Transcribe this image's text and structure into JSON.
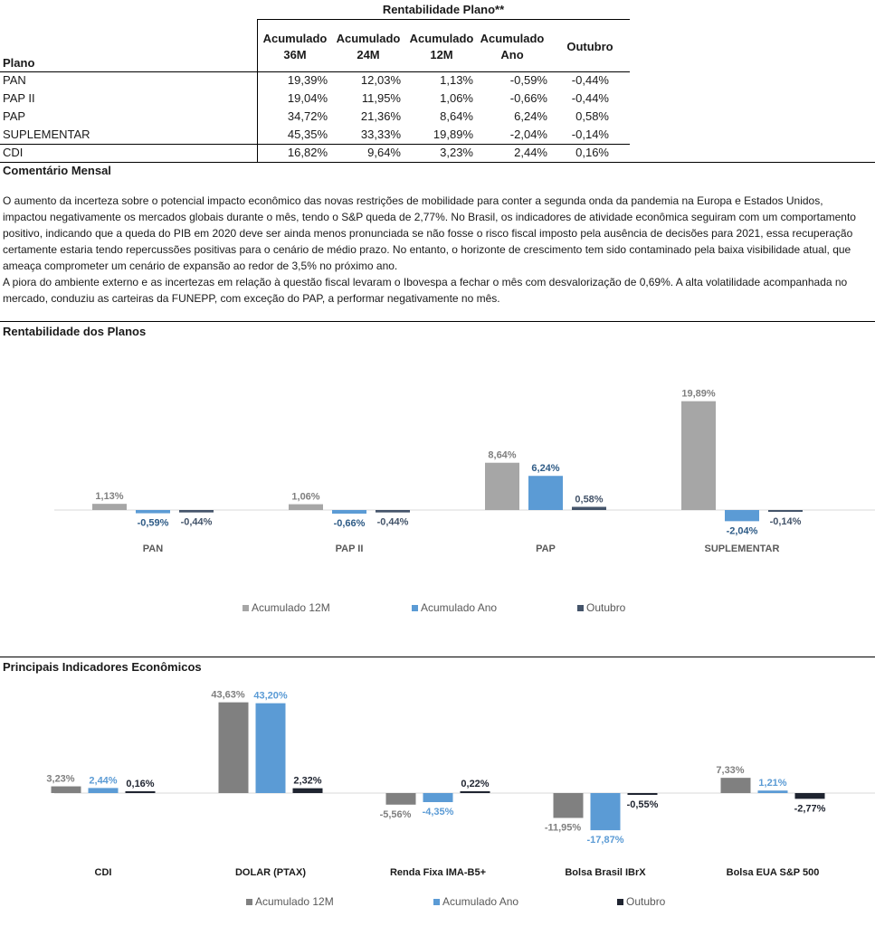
{
  "table": {
    "super_header": "Rentabilidade Plano**",
    "plan_header": "Plano",
    "columns": [
      {
        "line1": "Acumulado",
        "line2": "36M"
      },
      {
        "line1": "Acumulado",
        "line2": "24M"
      },
      {
        "line1": "Acumulado",
        "line2": "12M"
      },
      {
        "line1": "Acumulado",
        "line2": "Ano"
      },
      {
        "line1": "Outubro",
        "line2": ""
      }
    ],
    "rows": [
      {
        "name": "PAN",
        "values": [
          "19,39%",
          "12,03%",
          "1,13%",
          "-0,59%",
          "-0,44%"
        ]
      },
      {
        "name": "PAP II",
        "values": [
          "19,04%",
          "11,95%",
          "1,06%",
          "-0,66%",
          "-0,44%"
        ]
      },
      {
        "name": "PAP",
        "values": [
          "34,72%",
          "21,36%",
          "8,64%",
          "6,24%",
          "0,58%"
        ]
      },
      {
        "name": "SUPLEMENTAR",
        "values": [
          "45,35%",
          "33,33%",
          "19,89%",
          "-2,04%",
          "-0,14%"
        ]
      },
      {
        "name": "CDI",
        "values": [
          "16,82%",
          "9,64%",
          "3,23%",
          "2,44%",
          "0,16%"
        ]
      }
    ]
  },
  "comment": {
    "title": "Comentário Mensal",
    "paragraph1": "O aumento da incerteza sobre o potencial impacto econômico das novas restrições de mobilidade para conter a segunda onda da pandemia na Europa e Estados Unidos, impactou negativamente os mercados globais durante o mês, tendo o S&P queda de 2,77%. No Brasil, os indicadores de atividade econômica seguiram com um comportamento positivo, indicando que a queda do PIB em 2020 deve ser ainda menos pronunciada se não fosse o risco fiscal imposto pela ausência de decisões para 2021, essa recuperação certamente estaria tendo repercussões positivas para o cenário de médio prazo. No entanto, o horizonte de crescimento tem sido contaminado pela baixa visibilidade atual, que ameaça comprometer um cenário de expansão ao redor de 3,5% no próximo ano.",
    "paragraph2": "A piora do ambiente externo e as incertezas em relação à questão fiscal levaram o Ibovespa a fechar o mês com desvalorização de 0,69%. A alta volatilidade acompanhada no mercado, conduziu as carteiras da FUNEPP, com exceção do PAP,  a performar negativamente no mês."
  },
  "section1_title": "Rentabilidade dos Planos",
  "section2_title": "Principais Indicadores Econômicos",
  "chart_data": [
    {
      "type": "bar",
      "title": "Rentabilidade dos Planos",
      "categories": [
        "PAN",
        "PAP II",
        "PAP",
        "SUPLEMENTAR"
      ],
      "series": [
        {
          "name": "Acumulado 12M",
          "values": [
            1.13,
            1.06,
            8.64,
            19.89
          ],
          "labels": [
            "1,13%",
            "1,06%",
            "8,64%",
            "19,89%"
          ],
          "color": "#a6a6a6",
          "label_color": "#7f7f7f"
        },
        {
          "name": "Acumulado Ano",
          "values": [
            -0.59,
            -0.66,
            6.24,
            -2.04
          ],
          "labels": [
            "-0,59%",
            "-0,66%",
            "6,24%",
            "-2,04%"
          ],
          "color": "#5b9bd5",
          "label_color": "#2e5b86"
        },
        {
          "name": "Outubro",
          "values": [
            -0.44,
            -0.44,
            0.58,
            -0.14
          ],
          "labels": [
            "-0,44%",
            "-0,44%",
            "0,58%",
            "-0,14%"
          ],
          "color": "#44546a",
          "label_color": "#44546a"
        }
      ],
      "legend": "bottom"
    },
    {
      "type": "bar",
      "title": "Principais Indicadores Econômicos",
      "categories": [
        "CDI",
        "DOLAR (PTAX)",
        "Renda Fixa IMA-B5+",
        "Bolsa Brasil IBrX",
        "Bolsa EUA S&P 500"
      ],
      "series": [
        {
          "name": "Acumulado 12M",
          "values": [
            3.23,
            43.63,
            -5.56,
            -11.95,
            7.33
          ],
          "labels": [
            "3,23%",
            "43,63%",
            "-5,56%",
            "-11,95%",
            "7,33%"
          ],
          "color": "#808080",
          "label_color": "#7f7f7f"
        },
        {
          "name": "Acumulado Ano",
          "values": [
            2.44,
            43.2,
            -4.35,
            -17.87,
            1.21
          ],
          "labels": [
            "2,44%",
            "43,20%",
            "-4,35%",
            "-17,87%",
            "1,21%"
          ],
          "color": "#5b9bd5",
          "label_color": "#5b9bd5"
        },
        {
          "name": "Outubro",
          "values": [
            0.16,
            2.32,
            0.22,
            -0.55,
            -2.77
          ],
          "labels": [
            "0,16%",
            "2,32%",
            "0,22%",
            "-0,55%",
            "-2,77%"
          ],
          "color": "#1f2430",
          "label_color": "#1f2430"
        }
      ],
      "legend": "bottom"
    }
  ]
}
